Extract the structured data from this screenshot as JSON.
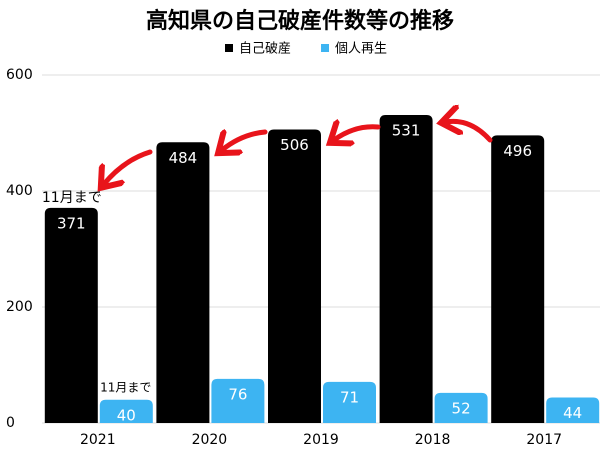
{
  "chart_data": {
    "type": "bar",
    "title": "高知県の自己破産件数等の推移",
    "categories": [
      "2021",
      "2020",
      "2019",
      "2018",
      "2017"
    ],
    "series": [
      {
        "name": "自己破産",
        "color": "#000000",
        "values": [
          371,
          484,
          506,
          531,
          496
        ]
      },
      {
        "name": "個人再生",
        "color": "#3db4f2",
        "values": [
          40,
          76,
          71,
          52,
          44
        ]
      }
    ],
    "annotations": [
      "11月まで",
      "11月まで"
    ],
    "ylim": [
      0,
      600
    ],
    "yticks": [
      0,
      200,
      400,
      600
    ],
    "grid": true
  }
}
